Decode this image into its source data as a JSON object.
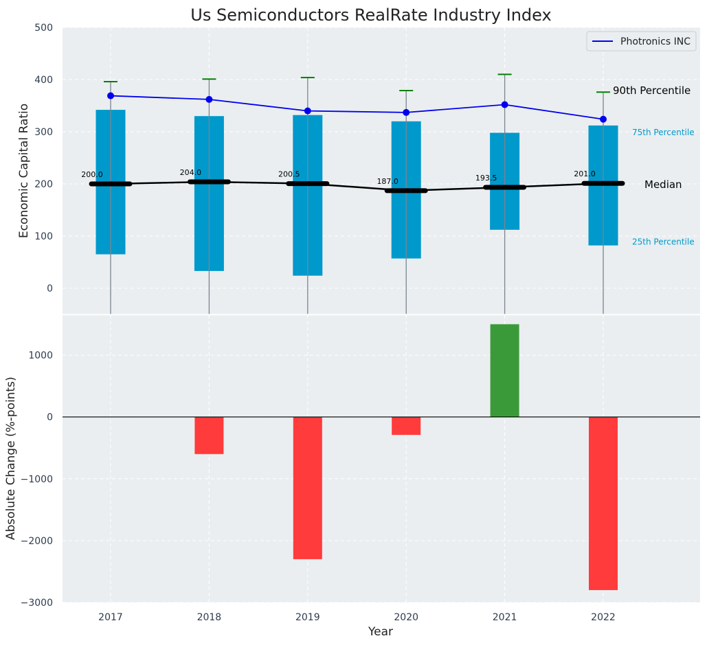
{
  "chart_data": [
    {
      "type": "box",
      "title": "Us Semiconductors RealRate Industry Index",
      "ylabel": "Economic Capital Ratio",
      "ylim": [
        -50,
        500
      ],
      "yticks": [
        0,
        100,
        200,
        300,
        400,
        500
      ],
      "categories": [
        "2017",
        "2018",
        "2019",
        "2020",
        "2021",
        "2022"
      ],
      "p25": [
        65,
        33,
        24,
        57,
        112,
        82
      ],
      "p75": [
        342,
        330,
        332,
        320,
        298,
        312
      ],
      "median": [
        200.0,
        204.0,
        200.5,
        187.0,
        193.5,
        201.0
      ],
      "median_labels": [
        "200.0",
        "204.0",
        "200.5",
        "187.0",
        "193.5",
        "201.0"
      ],
      "p90": [
        396,
        401,
        404,
        379,
        410,
        376
      ],
      "series": [
        {
          "name": "Photronics INC",
          "values": [
            369,
            362,
            340,
            337,
            352,
            324
          ],
          "color": "#0000ee"
        }
      ],
      "annotations": {
        "p90": "90th Percentile",
        "p75": "75th Percentile",
        "median": "Median",
        "p25": "25th Percentile"
      },
      "grid": true,
      "legend_position": "top-right",
      "colors": {
        "box": "#0099cc",
        "median": "#000000",
        "p90": "#008000"
      }
    },
    {
      "type": "bar",
      "xlabel": "Year",
      "ylabel": "Absolute Change (%-points)",
      "ylim": [
        -3000,
        1650
      ],
      "yticks": [
        -3000,
        -2000,
        -1000,
        0,
        1000
      ],
      "ytick_labels": [
        "−3000",
        "−2000",
        "−1000",
        "0",
        "1000"
      ],
      "categories": [
        "2017",
        "2018",
        "2019",
        "2020",
        "2021",
        "2022"
      ],
      "values": [
        0,
        -600,
        -2300,
        -290,
        1500,
        -2800
      ],
      "colors": {
        "positive": "#3a9a3a",
        "negative": "#ff3b3b"
      },
      "grid": true
    }
  ]
}
